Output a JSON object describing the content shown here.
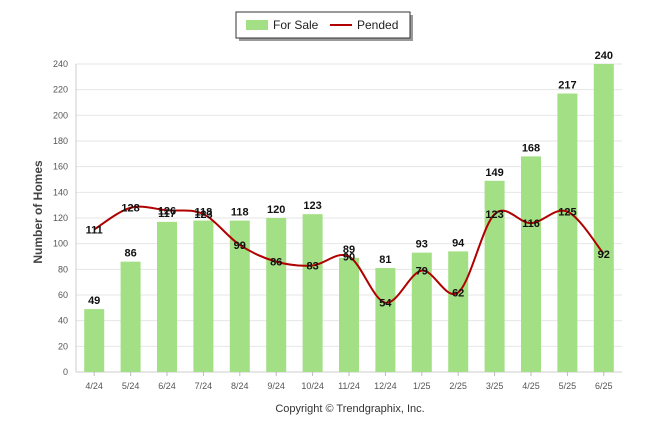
{
  "chart_data": {
    "type": "bar",
    "categories": [
      "4/24",
      "5/24",
      "6/24",
      "7/24",
      "8/24",
      "9/24",
      "10/24",
      "11/24",
      "12/24",
      "1/25",
      "2/25",
      "3/25",
      "4/25",
      "5/25",
      "6/25"
    ],
    "series": [
      {
        "name": "For Sale",
        "type": "bar",
        "color": "#a3df85",
        "values": [
          49,
          86,
          117,
          118,
          118,
          120,
          123,
          89,
          81,
          93,
          94,
          149,
          168,
          217,
          240
        ]
      },
      {
        "name": "Pended",
        "type": "line",
        "color": "#b00000",
        "values": [
          111,
          128,
          126,
          123,
          99,
          86,
          83,
          90,
          54,
          79,
          62,
          123,
          116,
          125,
          92
        ]
      }
    ],
    "title": "",
    "xlabel": "",
    "ylabel": "Number of Homes",
    "ylim": [
      0,
      240
    ],
    "yticks": [
      0,
      20,
      40,
      60,
      80,
      100,
      120,
      140,
      160,
      180,
      200,
      220,
      240
    ],
    "grid": true,
    "legend_position": "top-center",
    "credit": "Copyright © Trendgraphix, Inc."
  }
}
